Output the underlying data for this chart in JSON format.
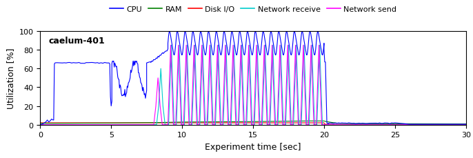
{
  "title": "caelum-401",
  "xlabel": "Experiment time [sec]",
  "ylabel": "Utilization [%]",
  "xlim": [
    0,
    30
  ],
  "ylim": [
    0,
    100
  ],
  "xticks": [
    0,
    5,
    10,
    15,
    20,
    25,
    30
  ],
  "yticks": [
    0,
    20,
    40,
    60,
    80,
    100
  ],
  "legend_labels": [
    "CPU",
    "RAM",
    "Disk I/O",
    "Network receive",
    "Network send"
  ],
  "legend_colors": [
    "#0000ff",
    "#008000",
    "#ff0000",
    "#00cccc",
    "#ff00ff"
  ],
  "line_width": 0.8,
  "cpu_plateau": 66,
  "cpu_high": 80,
  "osc_period": 0.55,
  "osc_start": 9.0,
  "osc_end": 20.0
}
